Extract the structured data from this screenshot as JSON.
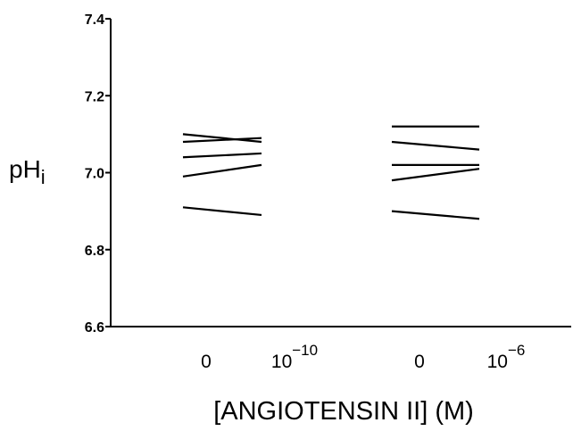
{
  "chart_data": {
    "type": "line",
    "title": "",
    "xlabel": "[ANGIOTENSIN II] (M)",
    "ylabel": {
      "main": "pH",
      "sub": "i"
    },
    "ylim": [
      6.6,
      7.4
    ],
    "yticks": [
      "6.6",
      "6.8",
      "7.0",
      "7.2",
      "7.4"
    ],
    "categories": [
      {
        "base": "0",
        "exp": ""
      },
      {
        "base": "10",
        "exp": "−10"
      },
      {
        "base": "0",
        "exp": ""
      },
      {
        "base": "10",
        "exp": "−6"
      }
    ],
    "groups": [
      {
        "from": "0",
        "to": "10^-10",
        "pairs": [
          [
            7.1,
            7.08
          ],
          [
            7.08,
            7.09
          ],
          [
            7.04,
            7.05
          ],
          [
            6.99,
            7.02
          ],
          [
            6.91,
            6.89
          ]
        ]
      },
      {
        "from": "0",
        "to": "10^-6",
        "pairs": [
          [
            7.12,
            7.12
          ],
          [
            7.08,
            7.06
          ],
          [
            7.02,
            7.02
          ],
          [
            6.98,
            7.01
          ],
          [
            6.9,
            6.88
          ]
        ]
      }
    ],
    "grid": false,
    "legend": "none"
  }
}
